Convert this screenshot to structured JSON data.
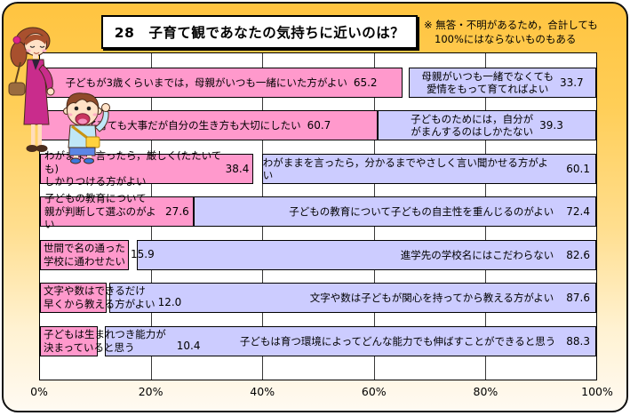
{
  "page": {
    "title": "28　子育て観であなたの気持ちに近いのは？",
    "note_line1": "※ 無答・不明があるため，合計しても",
    "note_line2": "100%にはならないものもある"
  },
  "chart_data": {
    "type": "bar",
    "layout": "paired-horizontal-diverging",
    "title": "28　子育て観であなたの気持ちに近いのは？",
    "note": "※ 無答・不明があるため，合計しても100%にはならないものもある",
    "axis": {
      "min": 0,
      "max": 100,
      "ticks": [
        "0%",
        "20%",
        "40%",
        "60%",
        "80%",
        "100%"
      ],
      "grid": true
    },
    "colors": {
      "left_bar": "#FF99CC",
      "right_bar": "#CCCCFF",
      "background_top": "#FFC440",
      "background_bottom": "#FFFAF2",
      "plot_background": "#FFFFFF"
    },
    "rows": [
      {
        "left": {
          "label": "子どもが3歳くらいまでは，母親がいつも一緒にいた方がよい",
          "value": 65.2,
          "value_label": "65.2"
        },
        "right": {
          "label": "母親がいつも一緒でなくても\n愛情をもって育てればよい",
          "value": 33.7,
          "value_label": "33.7"
        }
      },
      {
        "left": {
          "label": "子育ても大事だが自分の生き方も大切にしたい",
          "value": 60.7,
          "value_label": "60.7"
        },
        "right": {
          "label": "子どものためには，自分が\nがまんするのはしかたない",
          "value": 39.3,
          "value_label": "39.3"
        }
      },
      {
        "left": {
          "label": "わがままを言ったら，厳しく(たたいても)\nしかりつける方がよい",
          "value": 38.4,
          "value_label": "38.4"
        },
        "right": {
          "label": "わがままを言ったら，分かるまでやさしく言い聞かせる方がよい",
          "value": 60.1,
          "value_label": "60.1"
        }
      },
      {
        "left": {
          "label": "子どもの教育について\n親が判断して選ぶのがよい",
          "value": 27.6,
          "value_label": "27.6"
        },
        "right": {
          "label": "子どもの教育について子どもの自主性を重んじるのがよい",
          "value": 72.4,
          "value_label": "72.4"
        }
      },
      {
        "left": {
          "label": "世間で名の通った\n学校に通わせたい",
          "value": 15.9,
          "value_label": "15.9"
        },
        "right": {
          "label": "進学先の学校名にはこだわらない",
          "value": 82.6,
          "value_label": "82.6"
        }
      },
      {
        "left": {
          "label": "文字や数はできるだけ\n早くから教える方がよい",
          "value": 12.0,
          "value_label": "12.0"
        },
        "right": {
          "label": "文字や数は子どもが関心を持ってから教える方がよい",
          "value": 87.6,
          "value_label": "87.6"
        }
      },
      {
        "left": {
          "label": "子どもは生まれつき能力が\n決まっていると思う",
          "value": 10.4,
          "value_label": "10.4"
        },
        "right": {
          "label": "子どもは育つ環境によってどんな能力でも伸ばすことができると思う",
          "value": 88.3,
          "value_label": "88.3"
        }
      }
    ]
  }
}
